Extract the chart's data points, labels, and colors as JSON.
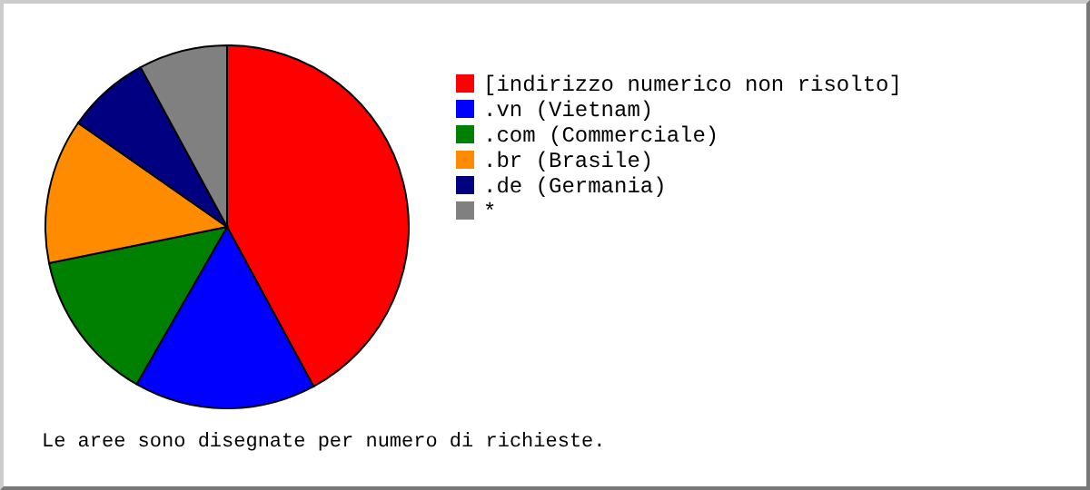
{
  "chart_data": {
    "type": "pie",
    "categories": [
      "[indirizzo numerico non risolto]",
      ".vn (Vietnam)",
      ".com (Commerciale)",
      ".br (Brasile)",
      ".de (Germania)",
      "*"
    ],
    "values": [
      42.1,
      16.2,
      13.5,
      12.9,
      7.4,
      7.9
    ],
    "colors": [
      "#ff0000",
      "#0000ff",
      "#008000",
      "#ff8c00",
      "#000080",
      "#808080"
    ],
    "legend": "right",
    "annotations": [
      "Le aree sono disegnate per numero di richieste."
    ]
  }
}
